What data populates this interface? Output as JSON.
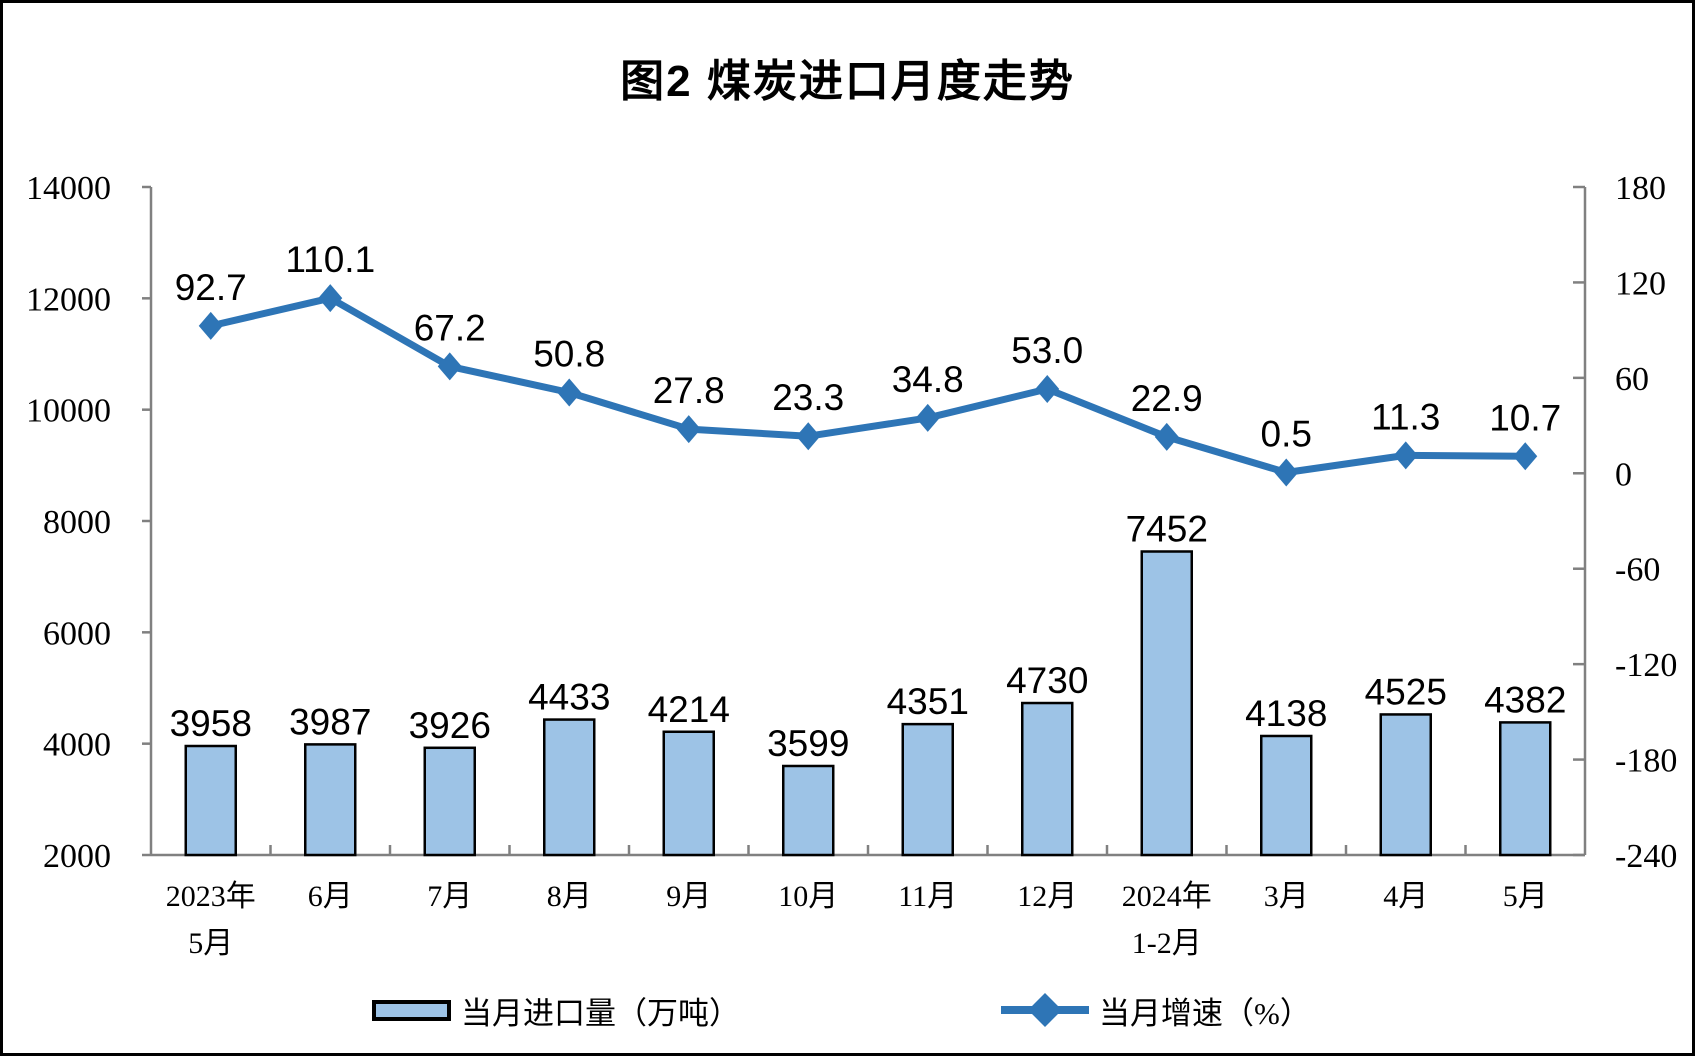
{
  "page": {
    "title": "图2 煤炭进口月度走势"
  },
  "chart_data": {
    "type": "bar",
    "combo": "bar+line",
    "title": "图2 煤炭进口月度走势",
    "categories": [
      [
        "2023年",
        "5月"
      ],
      [
        "6月"
      ],
      [
        "7月"
      ],
      [
        "8月"
      ],
      [
        "9月"
      ],
      [
        "10月"
      ],
      [
        "11月"
      ],
      [
        "12月"
      ],
      [
        "2024年",
        "1-2月"
      ],
      [
        "3月"
      ],
      [
        "4月"
      ],
      [
        "5月"
      ]
    ],
    "series": [
      {
        "name": "当月进口量（万吨）",
        "type": "bar",
        "axis": "left",
        "values": [
          3958,
          3987,
          3926,
          4433,
          4214,
          3599,
          4351,
          4730,
          7452,
          4138,
          4525,
          4382
        ],
        "labels": [
          "3958",
          "3987",
          "3926",
          "4433",
          "4214",
          "3599",
          "4351",
          "4730",
          "7452",
          "4138",
          "4525",
          "4382"
        ]
      },
      {
        "name": "当月增速（%）",
        "type": "line",
        "axis": "right",
        "values": [
          92.7,
          110.1,
          67.2,
          50.8,
          27.8,
          23.3,
          34.8,
          53.0,
          22.9,
          0.5,
          11.3,
          10.7
        ],
        "labels": [
          "92.7",
          "110.1",
          "67.2",
          "50.8",
          "27.8",
          "23.3",
          "34.8",
          "53.0",
          "22.9",
          "0.5",
          "11.3",
          "10.7"
        ]
      }
    ],
    "left_axis": {
      "range": [
        2000,
        14000
      ],
      "ticks": [
        2000,
        4000,
        6000,
        8000,
        10000,
        12000,
        14000
      ]
    },
    "right_axis": {
      "range": [
        -240,
        180
      ],
      "ticks": [
        -240,
        -180,
        -120,
        -60,
        0,
        60,
        120,
        180
      ]
    },
    "legend_position": "bottom",
    "grid": false,
    "colors": {
      "bar_fill": "#9DC3E6",
      "bar_stroke": "#000000",
      "line": "#2E75B6",
      "axis": "#808080",
      "text": "#000000"
    }
  }
}
